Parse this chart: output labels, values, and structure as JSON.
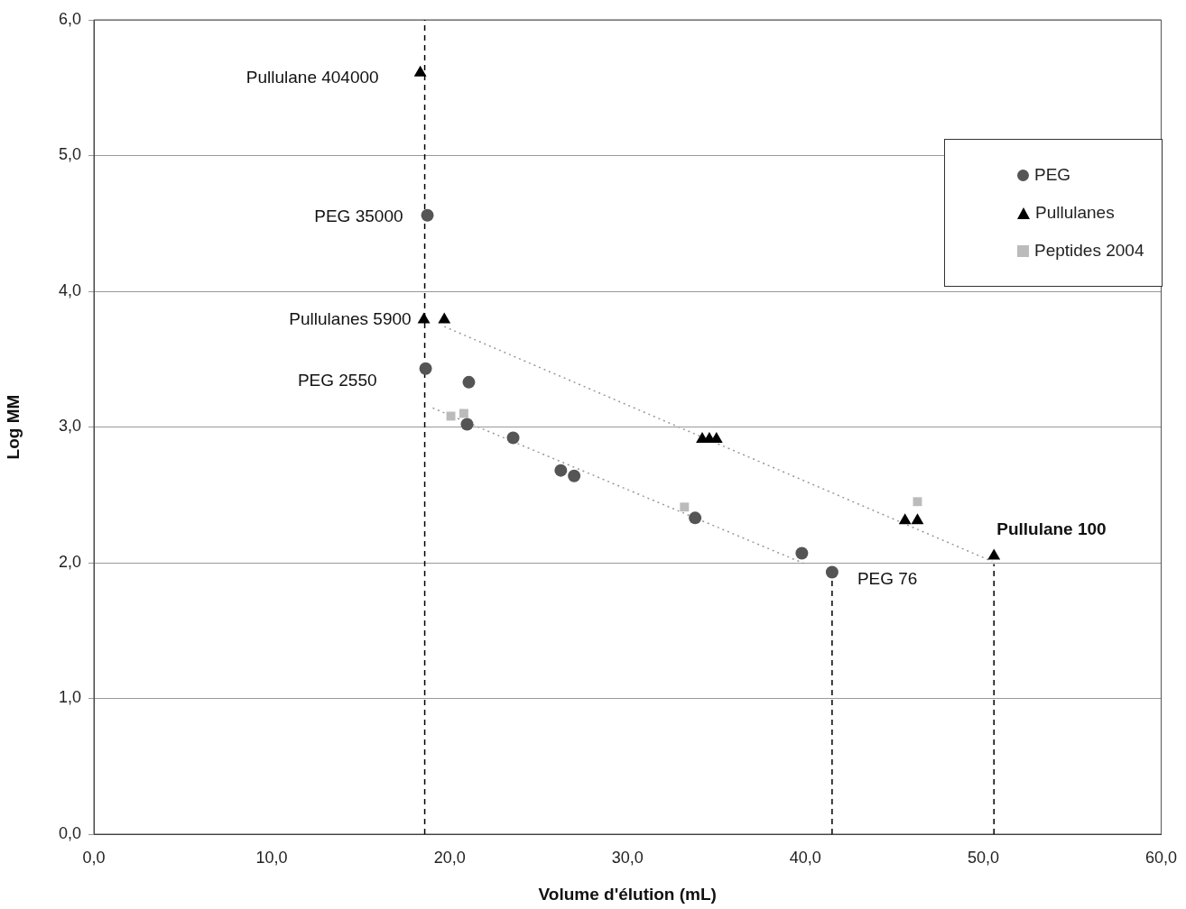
{
  "chart_data": {
    "type": "scatter",
    "xlabel": "Volume d'élution (mL)",
    "ylabel": "Log MM",
    "xlim": [
      0,
      60
    ],
    "xticks": [
      {
        "value": 0,
        "label": "0,0"
      },
      {
        "value": 10,
        "label": "10,0"
      },
      {
        "value": 20,
        "label": "20,0"
      },
      {
        "value": 30,
        "label": "30,0"
      },
      {
        "value": 40,
        "label": "40,0"
      },
      {
        "value": 50,
        "label": "50,0"
      },
      {
        "value": 60,
        "label": "60,0"
      }
    ],
    "ylim": [
      0,
      6
    ],
    "yticks": [
      {
        "value": 0,
        "label": "0,0"
      },
      {
        "value": 1,
        "label": "1,0"
      },
      {
        "value": 2,
        "label": "2,0"
      },
      {
        "value": 3,
        "label": "3,0"
      },
      {
        "value": 4,
        "label": "4,0"
      },
      {
        "value": 5,
        "label": "5,0"
      },
      {
        "value": 6,
        "label": "6,0"
      }
    ],
    "grid": "y",
    "legend": "top right",
    "series": [
      {
        "name": "PEG",
        "color": "#555555",
        "marker": "circle",
        "x": [
          18.75,
          18.65,
          21.08,
          20.98,
          23.57,
          26.25,
          27.0,
          33.8,
          39.8,
          41.5
        ],
        "values": [
          4.56,
          3.43,
          3.33,
          3.02,
          2.92,
          2.68,
          2.64,
          2.33,
          2.07,
          1.93
        ]
      },
      {
        "name": "Pullulanes",
        "color": "#000000",
        "marker": "triangle",
        "x": [
          18.35,
          18.55,
          19.7,
          34.2,
          34.6,
          35.0,
          45.6,
          46.3,
          50.6
        ],
        "values": [
          5.61,
          3.79,
          3.79,
          2.91,
          2.91,
          2.91,
          2.31,
          2.31,
          2.05
        ]
      },
      {
        "name": "Peptides 2004",
        "color": "#bbbbbb",
        "marker": "square",
        "x": [
          20.07,
          20.8,
          33.2,
          46.3
        ],
        "values": [
          3.08,
          3.1,
          2.41,
          2.45
        ]
      },
      {
        "type": "line",
        "color": "#999999",
        "marker": "none",
        "line_style": "dotted",
        "x": [
          19.7,
          50.5
        ],
        "values": [
          3.74,
          2.01
        ]
      },
      {
        "type": "line",
        "color": "#999999",
        "marker": "none",
        "line_style": "dotted",
        "x": [
          19.05,
          40.0
        ],
        "values": [
          3.14,
          1.99
        ]
      },
      {
        "type": "line",
        "color": "#000000",
        "marker": "none",
        "line_style": "dashed",
        "x": [
          18.6,
          18.6
        ],
        "values": [
          0,
          6
        ]
      },
      {
        "type": "line",
        "color": "#000000",
        "marker": "none",
        "line_style": "dashed",
        "x": [
          41.5,
          41.5
        ],
        "values": [
          0,
          1.93
        ]
      },
      {
        "type": "line",
        "color": "#000000",
        "marker": "none",
        "line_style": "dashed",
        "x": [
          50.6,
          50.6
        ],
        "values": [
          0,
          1.99
        ]
      }
    ],
    "annotations": [
      {
        "text": "Pullulane 404000",
        "x": 18.35,
        "y": 5.61
      },
      {
        "text": "PEG 35000",
        "x": 18.75,
        "y": 4.56
      },
      {
        "text": "Pullulanes 5900",
        "x": 18.55,
        "y": 3.79
      },
      {
        "text": "PEG 2550",
        "x": 18.65,
        "y": 3.43
      },
      {
        "text": "PEG 76",
        "x": 41.5,
        "y": 1.93
      },
      {
        "text": "Pullulane 100",
        "x": 50.6,
        "y": 2.05
      }
    ]
  }
}
